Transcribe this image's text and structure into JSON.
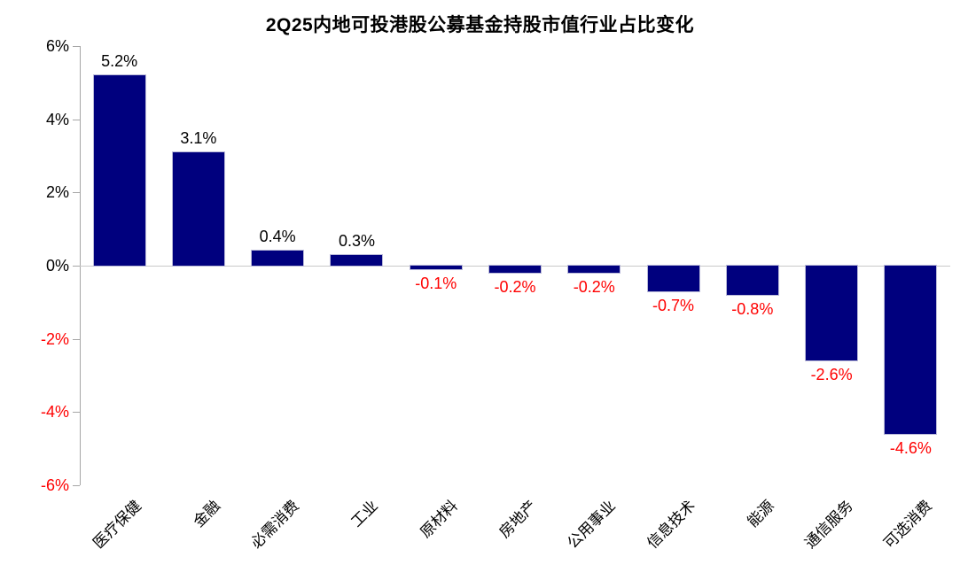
{
  "chart_data": {
    "type": "bar",
    "title": "2Q25内地可投港股公募基金持股市值行业占比变化",
    "categories": [
      "医疗保健",
      "金融",
      "必需消费",
      "工业",
      "原材料",
      "房地产",
      "公用事业",
      "信息技术",
      "能源",
      "通信服务",
      "可选消费"
    ],
    "values": [
      5.2,
      3.1,
      0.4,
      0.3,
      -0.1,
      -0.2,
      -0.2,
      -0.7,
      -0.8,
      -2.6,
      -4.6
    ],
    "value_labels": [
      "5.2%",
      "3.1%",
      "0.4%",
      "0.3%",
      "-0.1%",
      "-0.2%",
      "-0.2%",
      "-0.7%",
      "-0.8%",
      "-2.6%",
      "-4.6%"
    ],
    "xlabel": "",
    "ylabel": "",
    "ylim": [
      -6,
      6
    ],
    "yticks": [
      6,
      4,
      2,
      0,
      -2,
      -4,
      -6
    ],
    "ytick_labels": [
      "6%",
      "4%",
      "2%",
      "0%",
      "-2%",
      "-4%",
      "-6%"
    ],
    "grid": "zero-line-only",
    "legend": "none",
    "colors": {
      "bar_fill": "#00007E",
      "bar_edge": "#b9b9d8",
      "positive_label": "#000000",
      "negative_label": "#FF0000",
      "positive_tick_label": "#000000",
      "negative_tick_label": "#FF0000",
      "axis_line": "#A6A6A6",
      "zero_line": "#C8C8C8",
      "title": "#000000"
    }
  }
}
